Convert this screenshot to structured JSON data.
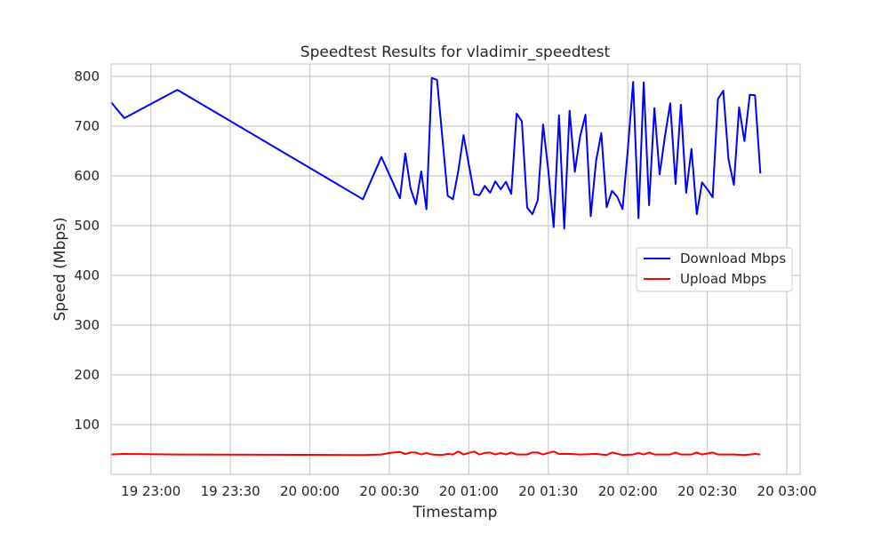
{
  "chart_data": {
    "type": "line",
    "title": "Speedtest Results for vladimir_speedtest",
    "xlabel": "Timestamp",
    "ylabel": "Speed (Mbps)",
    "xlim": [
      "2024-01-19 22:45",
      "2024-01-20 03:05"
    ],
    "ylim": [
      0,
      825
    ],
    "grid": true,
    "legend_position": "center-right",
    "x_ticks": [
      {
        "t": "2024-01-19 23:00",
        "label": "19 23:00"
      },
      {
        "t": "2024-01-19 23:30",
        "label": "19 23:30"
      },
      {
        "t": "2024-01-20 00:00",
        "label": "20 00:00"
      },
      {
        "t": "2024-01-20 00:30",
        "label": "20 00:30"
      },
      {
        "t": "2024-01-20 01:00",
        "label": "20 01:00"
      },
      {
        "t": "2024-01-20 01:30",
        "label": "20 01:30"
      },
      {
        "t": "2024-01-20 02:00",
        "label": "20 02:00"
      },
      {
        "t": "2024-01-20 02:30",
        "label": "20 02:30"
      },
      {
        "t": "2024-01-20 03:00",
        "label": "20 03:00"
      }
    ],
    "y_ticks": [
      100,
      200,
      300,
      400,
      500,
      600,
      700,
      800
    ],
    "series": [
      {
        "name": "Download Mbps",
        "color": "#0000ff",
        "points": [
          [
            "2024-01-19 22:45",
            748
          ],
          [
            "2024-01-19 22:50",
            716
          ],
          [
            "2024-01-19 23:10",
            773
          ],
          [
            "2024-01-20 00:20",
            553
          ],
          [
            "2024-01-20 00:27",
            638
          ],
          [
            "2024-01-20 00:34",
            555
          ],
          [
            "2024-01-20 00:36",
            645
          ],
          [
            "2024-01-20 00:38",
            575
          ],
          [
            "2024-01-20 00:40",
            543
          ],
          [
            "2024-01-20 00:42",
            609
          ],
          [
            "2024-01-20 00:44",
            533
          ],
          [
            "2024-01-20 00:46",
            797
          ],
          [
            "2024-01-20 00:48",
            793
          ],
          [
            "2024-01-20 00:52",
            560
          ],
          [
            "2024-01-20 00:54",
            553
          ],
          [
            "2024-01-20 00:56",
            610
          ],
          [
            "2024-01-20 00:58",
            682
          ],
          [
            "2024-01-20 01:02",
            563
          ],
          [
            "2024-01-20 01:04",
            561
          ],
          [
            "2024-01-20 01:06",
            580
          ],
          [
            "2024-01-20 01:08",
            566
          ],
          [
            "2024-01-20 01:10",
            589
          ],
          [
            "2024-01-20 01:12",
            573
          ],
          [
            "2024-01-20 01:14",
            588
          ],
          [
            "2024-01-20 01:16",
            564
          ],
          [
            "2024-01-20 01:18",
            725
          ],
          [
            "2024-01-20 01:20",
            710
          ],
          [
            "2024-01-20 01:22",
            536
          ],
          [
            "2024-01-20 01:24",
            523
          ],
          [
            "2024-01-20 01:26",
            551
          ],
          [
            "2024-01-20 01:28",
            703
          ],
          [
            "2024-01-20 01:30",
            610
          ],
          [
            "2024-01-20 01:32",
            497
          ],
          [
            "2024-01-20 01:34",
            722
          ],
          [
            "2024-01-20 01:36",
            494
          ],
          [
            "2024-01-20 01:38",
            731
          ],
          [
            "2024-01-20 01:40",
            608
          ],
          [
            "2024-01-20 01:42",
            680
          ],
          [
            "2024-01-20 01:44",
            723
          ],
          [
            "2024-01-20 01:46",
            519
          ],
          [
            "2024-01-20 01:48",
            630
          ],
          [
            "2024-01-20 01:50",
            686
          ],
          [
            "2024-01-20 01:52",
            537
          ],
          [
            "2024-01-20 01:54",
            570
          ],
          [
            "2024-01-20 01:56",
            558
          ],
          [
            "2024-01-20 01:58",
            533
          ],
          [
            "2024-01-20 02:00",
            655
          ],
          [
            "2024-01-20 02:02",
            789
          ],
          [
            "2024-01-20 02:04",
            515
          ],
          [
            "2024-01-20 02:06",
            788
          ],
          [
            "2024-01-20 02:08",
            541
          ],
          [
            "2024-01-20 02:10",
            736
          ],
          [
            "2024-01-20 02:12",
            603
          ],
          [
            "2024-01-20 02:14",
            680
          ],
          [
            "2024-01-20 02:16",
            746
          ],
          [
            "2024-01-20 02:18",
            584
          ],
          [
            "2024-01-20 02:20",
            743
          ],
          [
            "2024-01-20 02:22",
            566
          ],
          [
            "2024-01-20 02:24",
            654
          ],
          [
            "2024-01-20 02:26",
            523
          ],
          [
            "2024-01-20 02:28",
            587
          ],
          [
            "2024-01-20 02:30",
            573
          ],
          [
            "2024-01-20 02:32",
            557
          ],
          [
            "2024-01-20 02:34",
            755
          ],
          [
            "2024-01-20 02:36",
            771
          ],
          [
            "2024-01-20 02:38",
            633
          ],
          [
            "2024-01-20 02:40",
            582
          ],
          [
            "2024-01-20 02:42",
            738
          ],
          [
            "2024-01-20 02:44",
            670
          ],
          [
            "2024-01-20 02:46",
            763
          ],
          [
            "2024-01-20 02:48",
            762
          ],
          [
            "2024-01-20 02:50",
            605
          ]
        ]
      },
      {
        "name": "Upload Mbps",
        "color": "#ff0000",
        "points": [
          [
            "2024-01-19 22:45",
            40
          ],
          [
            "2024-01-19 22:50",
            41
          ],
          [
            "2024-01-19 23:10",
            40
          ],
          [
            "2024-01-20 00:20",
            39
          ],
          [
            "2024-01-20 00:27",
            40
          ],
          [
            "2024-01-20 00:30",
            43
          ],
          [
            "2024-01-20 00:34",
            45
          ],
          [
            "2024-01-20 00:36",
            41
          ],
          [
            "2024-01-20 00:38",
            44
          ],
          [
            "2024-01-20 00:40",
            44
          ],
          [
            "2024-01-20 00:42",
            40
          ],
          [
            "2024-01-20 00:44",
            43
          ],
          [
            "2024-01-20 00:46",
            40
          ],
          [
            "2024-01-20 00:50",
            39
          ],
          [
            "2024-01-20 00:52",
            41
          ],
          [
            "2024-01-20 00:54",
            40
          ],
          [
            "2024-01-20 00:56",
            46
          ],
          [
            "2024-01-20 00:58",
            40
          ],
          [
            "2024-01-20 01:02",
            46
          ],
          [
            "2024-01-20 01:04",
            40
          ],
          [
            "2024-01-20 01:06",
            43
          ],
          [
            "2024-01-20 01:08",
            44
          ],
          [
            "2024-01-20 01:10",
            40
          ],
          [
            "2024-01-20 01:12",
            43
          ],
          [
            "2024-01-20 01:14",
            40
          ],
          [
            "2024-01-20 01:16",
            44
          ],
          [
            "2024-01-20 01:18",
            40
          ],
          [
            "2024-01-20 01:22",
            40
          ],
          [
            "2024-01-20 01:24",
            44
          ],
          [
            "2024-01-20 01:26",
            44
          ],
          [
            "2024-01-20 01:28",
            40
          ],
          [
            "2024-01-20 01:32",
            46
          ],
          [
            "2024-01-20 01:34",
            41
          ],
          [
            "2024-01-20 01:38",
            41
          ],
          [
            "2024-01-20 01:42",
            40
          ],
          [
            "2024-01-20 01:48",
            41
          ],
          [
            "2024-01-20 01:52",
            39
          ],
          [
            "2024-01-20 01:54",
            44
          ],
          [
            "2024-01-20 01:58",
            39
          ],
          [
            "2024-01-20 02:02",
            40
          ],
          [
            "2024-01-20 02:04",
            43
          ],
          [
            "2024-01-20 02:06",
            40
          ],
          [
            "2024-01-20 02:08",
            44
          ],
          [
            "2024-01-20 02:10",
            40
          ],
          [
            "2024-01-20 02:16",
            40
          ],
          [
            "2024-01-20 02:18",
            44
          ],
          [
            "2024-01-20 02:20",
            40
          ],
          [
            "2024-01-20 02:24",
            40
          ],
          [
            "2024-01-20 02:26",
            44
          ],
          [
            "2024-01-20 02:28",
            40
          ],
          [
            "2024-01-20 02:32",
            44
          ],
          [
            "2024-01-20 02:34",
            40
          ],
          [
            "2024-01-20 02:40",
            40
          ],
          [
            "2024-01-20 02:44",
            39
          ],
          [
            "2024-01-20 02:48",
            41
          ],
          [
            "2024-01-20 02:50",
            40
          ]
        ]
      }
    ]
  }
}
